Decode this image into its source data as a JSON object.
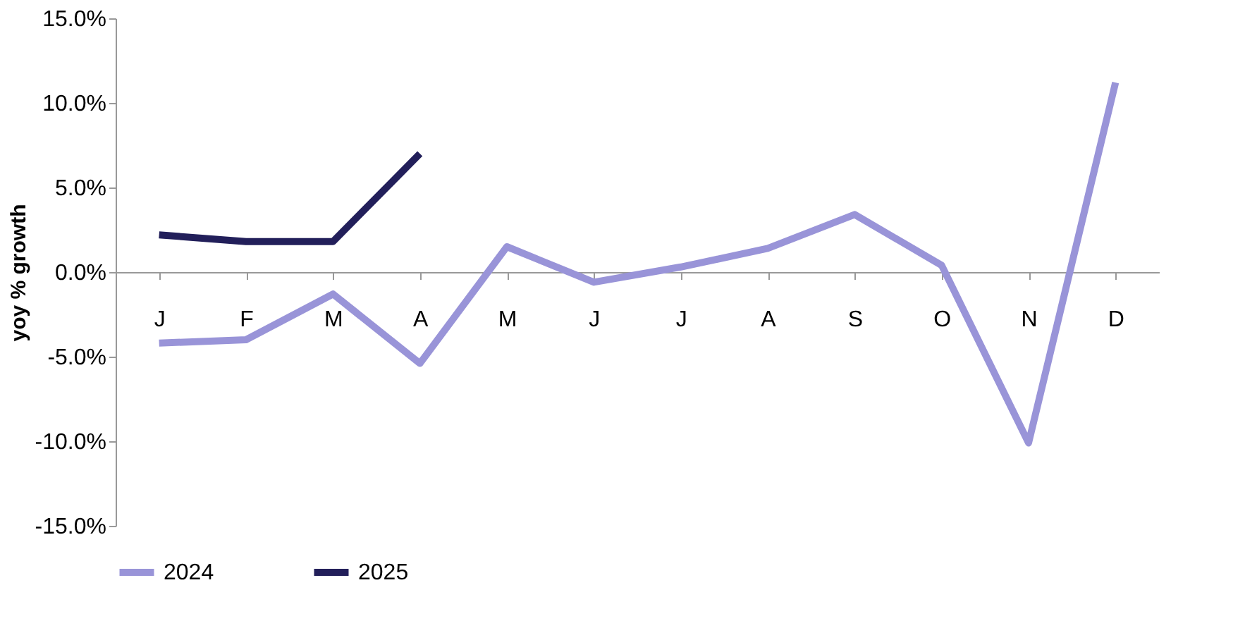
{
  "chart_data": {
    "type": "line",
    "ylabel": "yoy % growth",
    "categories": [
      "J",
      "F",
      "M",
      "A",
      "M",
      "J",
      "J",
      "A",
      "S",
      "O",
      "N",
      "D"
    ],
    "series": [
      {
        "name": "2024",
        "color": "#9994d8",
        "values": [
          -4.2,
          -4.0,
          -1.3,
          -5.4,
          1.5,
          -0.6,
          0.3,
          1.4,
          3.4,
          0.4,
          -10.1,
          11.2
        ]
      },
      {
        "name": "2025",
        "color": "#221f5a",
        "values": [
          2.2,
          1.8,
          1.8,
          7.0,
          null,
          null,
          null,
          null,
          null,
          null,
          null,
          null
        ]
      }
    ],
    "ylim": [
      -15,
      15
    ],
    "yticks": [
      {
        "value": -15,
        "label": "-15.0%"
      },
      {
        "value": -10,
        "label": "-10.0%"
      },
      {
        "value": -5,
        "label": "-5.0%"
      },
      {
        "value": 0,
        "label": "0.0%"
      },
      {
        "value": 5,
        "label": "5.0%"
      },
      {
        "value": 10,
        "label": "10.0%"
      },
      {
        "value": 15,
        "label": "15.0%"
      }
    ],
    "grid": false,
    "legend": "bottom",
    "marker": "none",
    "line_style": "solid"
  }
}
